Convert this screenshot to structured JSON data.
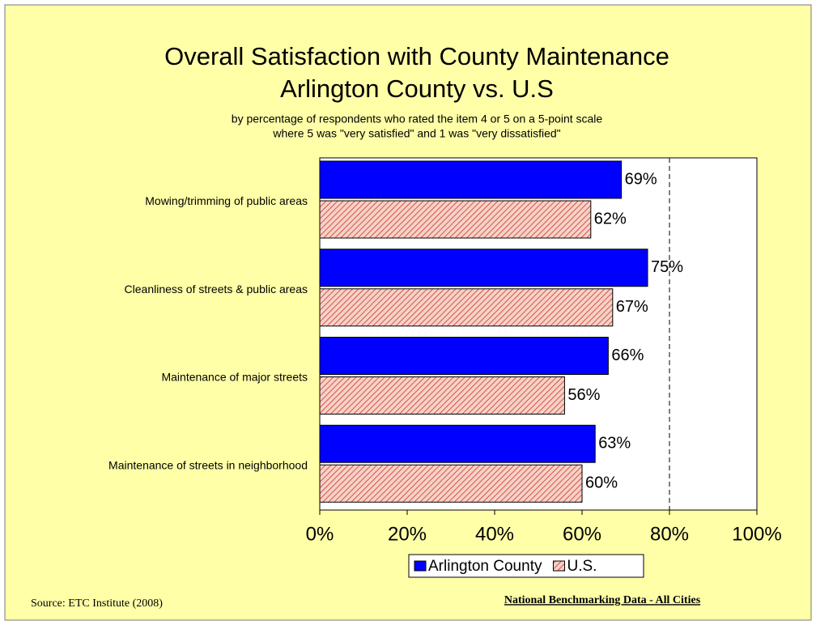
{
  "chart_data": {
    "type": "bar",
    "orientation": "horizontal",
    "title": [
      "Overall Satisfaction with County Maintenance",
      "Arlington County vs. U.S"
    ],
    "subtitle": [
      "by percentage of respondents who rated the item 4 or 5 on a 5-point scale",
      "where 5 was \"very satisfied\" and 1 was \"very dissatisfied\""
    ],
    "categories": [
      "Mowing/trimming of public areas",
      "Cleanliness of streets & public areas",
      "Maintenance of major streets",
      "Maintenance of streets in neighborhood"
    ],
    "series": [
      {
        "name": "Arlington County",
        "color": "#0000ff",
        "values": [
          69,
          75,
          66,
          63
        ],
        "value_labels": [
          "69%",
          "75%",
          "66%",
          "63%"
        ]
      },
      {
        "name": "U.S.",
        "color": "#cc3333",
        "pattern": "hatch",
        "values": [
          62,
          67,
          56,
          60
        ],
        "value_labels": [
          "62%",
          "67%",
          "56%",
          "60%"
        ]
      }
    ],
    "xlim": [
      0,
      100
    ],
    "xticks": [
      {
        "value": 0,
        "label": "0%"
      },
      {
        "value": 20,
        "label": "20%"
      },
      {
        "value": 40,
        "label": "40%"
      },
      {
        "value": 60,
        "label": "60%"
      },
      {
        "value": 80,
        "label": "80%"
      },
      {
        "value": 100,
        "label": "100%"
      }
    ],
    "reference_line": 80,
    "legend": "bottom",
    "source": "Source:  ETC Institute (2008)",
    "note": "National Benchmarking Data - All Cities"
  }
}
